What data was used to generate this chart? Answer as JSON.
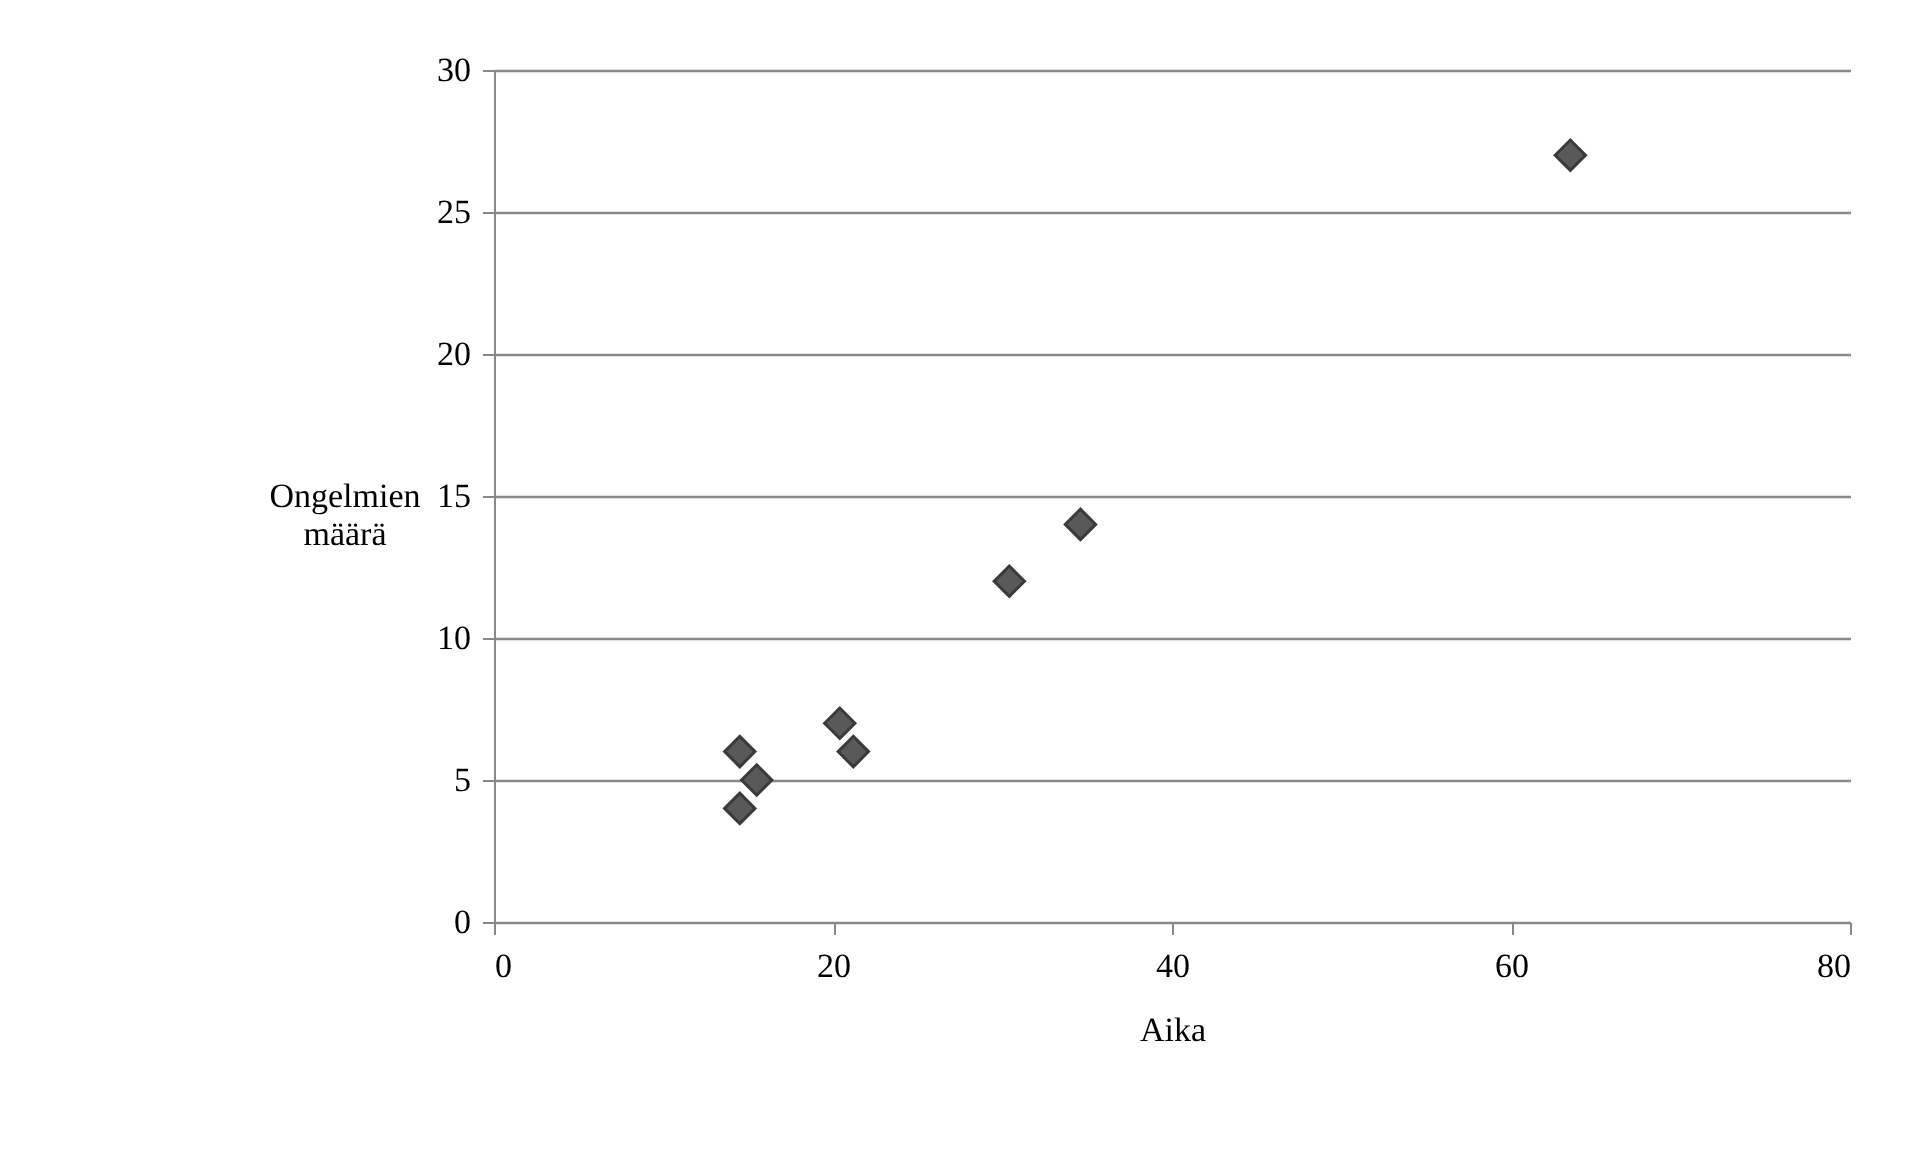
{
  "chart_data": {
    "type": "scatter",
    "xlabel": "Aika",
    "ylabel": "Ongelmien määrä",
    "x": [
      14.5,
      14.5,
      15.5,
      20.4,
      21.2,
      30.4,
      34.6,
      63.5
    ],
    "series": [
      {
        "color": "#595959",
        "values": [
          6,
          4,
          5,
          7,
          6,
          12,
          14,
          27
        ]
      }
    ],
    "xlim": [
      0,
      80
    ],
    "xticks": [
      0,
      20,
      40,
      60,
      80
    ],
    "ylim": [
      0,
      30
    ],
    "yticks": [
      0,
      5,
      10,
      15,
      20,
      25,
      30
    ],
    "grid": "y",
    "marker": "diamond"
  }
}
